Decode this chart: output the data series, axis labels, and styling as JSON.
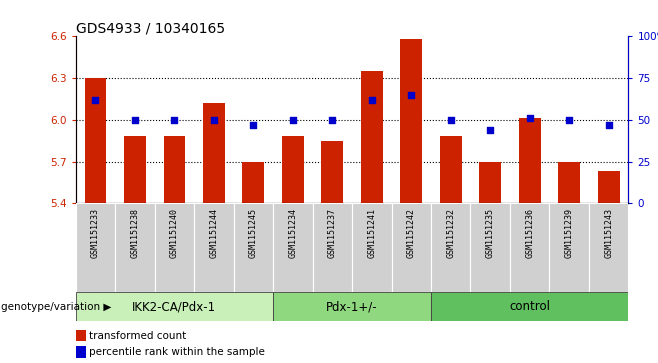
{
  "title": "GDS4933 / 10340165",
  "samples": [
    "GSM1151233",
    "GSM1151238",
    "GSM1151240",
    "GSM1151244",
    "GSM1151245",
    "GSM1151234",
    "GSM1151237",
    "GSM1151241",
    "GSM1151242",
    "GSM1151232",
    "GSM1151235",
    "GSM1151236",
    "GSM1151239",
    "GSM1151243"
  ],
  "bar_values": [
    6.3,
    5.88,
    5.88,
    6.12,
    5.7,
    5.88,
    5.85,
    6.35,
    6.58,
    5.88,
    5.7,
    6.01,
    5.7,
    5.63
  ],
  "dot_values": [
    62,
    50,
    50,
    50,
    47,
    50,
    50,
    62,
    65,
    50,
    44,
    51,
    50,
    47
  ],
  "ylim_left": [
    5.4,
    6.6
  ],
  "ylim_right": [
    0,
    100
  ],
  "yticks_left": [
    5.4,
    5.7,
    6.0,
    6.3,
    6.6
  ],
  "yticks_right": [
    0,
    25,
    50,
    75,
    100
  ],
  "hlines": [
    5.7,
    6.0,
    6.3
  ],
  "groups": [
    {
      "label": "IKK2-CA/Pdx-1",
      "start": 0,
      "end": 5,
      "color": "#c8f0b8"
    },
    {
      "label": "Pdx-1+/-",
      "start": 5,
      "end": 9,
      "color": "#90d880"
    },
    {
      "label": "control",
      "start": 9,
      "end": 14,
      "color": "#60c060"
    }
  ],
  "bar_color": "#cc2200",
  "dot_color": "#0000cc",
  "bar_width": 0.55,
  "legend_items": [
    {
      "label": "transformed count",
      "color": "#cc2200"
    },
    {
      "label": "percentile rank within the sample",
      "color": "#0000cc"
    }
  ],
  "genotype_label": "genotype/variation",
  "title_fontsize": 10,
  "tick_fontsize": 7.5,
  "group_fontsize": 8.5,
  "label_fontsize": 7.5,
  "sample_fontsize": 6.0
}
